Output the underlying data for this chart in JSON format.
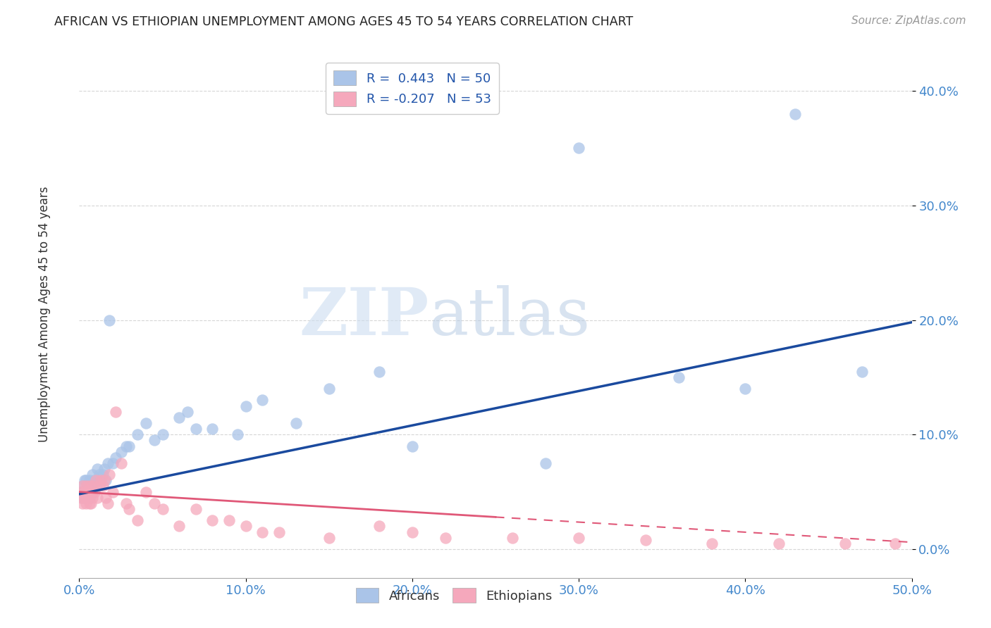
{
  "title": "AFRICAN VS ETHIOPIAN UNEMPLOYMENT AMONG AGES 45 TO 54 YEARS CORRELATION CHART",
  "source": "Source: ZipAtlas.com",
  "ylabel": "Unemployment Among Ages 45 to 54 years",
  "xlim": [
    0.0,
    0.5
  ],
  "ylim": [
    -0.025,
    0.43
  ],
  "xticks": [
    0.0,
    0.1,
    0.2,
    0.3,
    0.4,
    0.5
  ],
  "yticks": [
    0.0,
    0.1,
    0.2,
    0.3,
    0.4
  ],
  "african_R": 0.443,
  "african_N": 50,
  "ethiopian_R": -0.207,
  "ethiopian_N": 53,
  "african_color": "#aac4e8",
  "ethiopian_color": "#f5a8bc",
  "african_line_color": "#1a4a9e",
  "ethiopian_line_color": "#e05878",
  "background_color": "#ffffff",
  "grid_color": "#cccccc",
  "watermark_zip": "ZIP",
  "watermark_atlas": "atlas",
  "african_x": [
    0.001,
    0.002,
    0.002,
    0.003,
    0.003,
    0.004,
    0.004,
    0.005,
    0.005,
    0.006,
    0.006,
    0.007,
    0.008,
    0.008,
    0.009,
    0.01,
    0.011,
    0.012,
    0.013,
    0.014,
    0.015,
    0.016,
    0.017,
    0.018,
    0.02,
    0.022,
    0.025,
    0.028,
    0.03,
    0.035,
    0.04,
    0.045,
    0.05,
    0.06,
    0.065,
    0.07,
    0.08,
    0.095,
    0.1,
    0.11,
    0.13,
    0.15,
    0.18,
    0.2,
    0.28,
    0.3,
    0.36,
    0.4,
    0.43,
    0.47
  ],
  "african_y": [
    0.05,
    0.055,
    0.045,
    0.06,
    0.045,
    0.05,
    0.06,
    0.055,
    0.05,
    0.06,
    0.045,
    0.055,
    0.065,
    0.05,
    0.06,
    0.055,
    0.07,
    0.065,
    0.06,
    0.065,
    0.07,
    0.06,
    0.075,
    0.2,
    0.075,
    0.08,
    0.085,
    0.09,
    0.09,
    0.1,
    0.11,
    0.095,
    0.1,
    0.115,
    0.12,
    0.105,
    0.105,
    0.1,
    0.125,
    0.13,
    0.11,
    0.14,
    0.155,
    0.09,
    0.075,
    0.35,
    0.15,
    0.14,
    0.38,
    0.155
  ],
  "ethiopian_x": [
    0.001,
    0.001,
    0.002,
    0.002,
    0.003,
    0.003,
    0.004,
    0.004,
    0.005,
    0.005,
    0.006,
    0.006,
    0.007,
    0.007,
    0.008,
    0.008,
    0.009,
    0.01,
    0.011,
    0.012,
    0.013,
    0.014,
    0.015,
    0.016,
    0.017,
    0.018,
    0.02,
    0.022,
    0.025,
    0.028,
    0.03,
    0.035,
    0.04,
    0.045,
    0.05,
    0.06,
    0.07,
    0.08,
    0.09,
    0.1,
    0.11,
    0.12,
    0.15,
    0.18,
    0.2,
    0.22,
    0.26,
    0.3,
    0.34,
    0.38,
    0.42,
    0.46,
    0.49
  ],
  "ethiopian_y": [
    0.05,
    0.045,
    0.055,
    0.04,
    0.05,
    0.045,
    0.055,
    0.04,
    0.05,
    0.045,
    0.055,
    0.04,
    0.05,
    0.04,
    0.045,
    0.055,
    0.05,
    0.06,
    0.045,
    0.055,
    0.06,
    0.055,
    0.06,
    0.045,
    0.04,
    0.065,
    0.05,
    0.12,
    0.075,
    0.04,
    0.035,
    0.025,
    0.05,
    0.04,
    0.035,
    0.02,
    0.035,
    0.025,
    0.025,
    0.02,
    0.015,
    0.015,
    0.01,
    0.02,
    0.015,
    0.01,
    0.01,
    0.01,
    0.008,
    0.005,
    0.005,
    0.005,
    0.005
  ]
}
